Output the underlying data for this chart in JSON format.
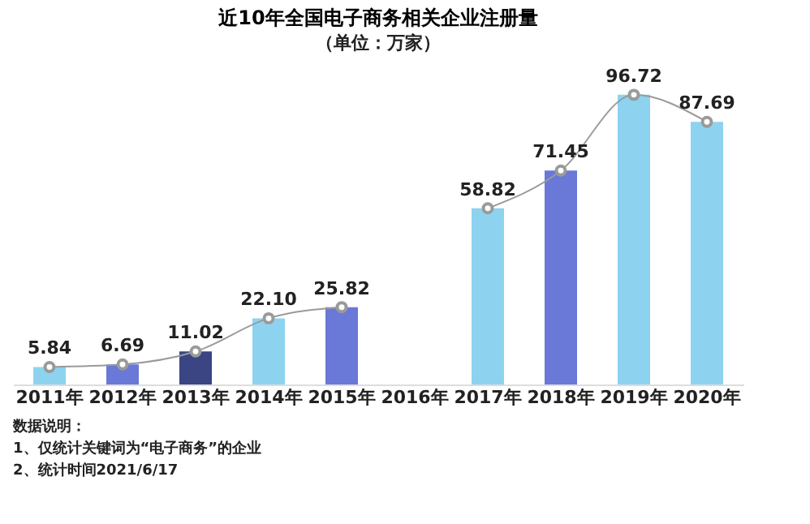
{
  "chart_data": {
    "type": "bar",
    "title": "近10年全国电子商务相关企业注册量",
    "subtitle": "（单位：万家）",
    "categories": [
      "2011年",
      "2012年",
      "2013年",
      "2014年",
      "2015年",
      "2016年",
      "2017年",
      "2018年",
      "2019年",
      "2020年"
    ],
    "series": [
      {
        "values": [
          5.84,
          6.69,
          11.02,
          22.1,
          25.82,
          null,
          58.82,
          71.45,
          96.72,
          87.69
        ],
        "colors": [
          "#8dd3f0",
          "#6a78d8",
          "#3b4583",
          "#8dd3f0",
          "#6a78d8",
          "#3b4583",
          "#8dd3f0",
          "#6a78d8",
          "#8dd3f0",
          "#8dd3f0"
        ]
      },
      {
        "type": "line",
        "values": [
          5.84,
          6.69,
          11.02,
          22.1,
          25.82,
          null,
          58.82,
          71.45,
          96.72,
          87.69
        ],
        "color": "#9a9a9a",
        "marker": "circle",
        "value_labels": [
          "5.84",
          "6.69",
          "11.02",
          "22.10",
          "25.82",
          null,
          "58.82",
          "71.45",
          "96.72",
          "87.69"
        ]
      }
    ],
    "annotations": [
      "数据说明：",
      "1、仅统计关键词为“电子商务”的企业",
      "2、统计时间2021/6/17"
    ]
  }
}
